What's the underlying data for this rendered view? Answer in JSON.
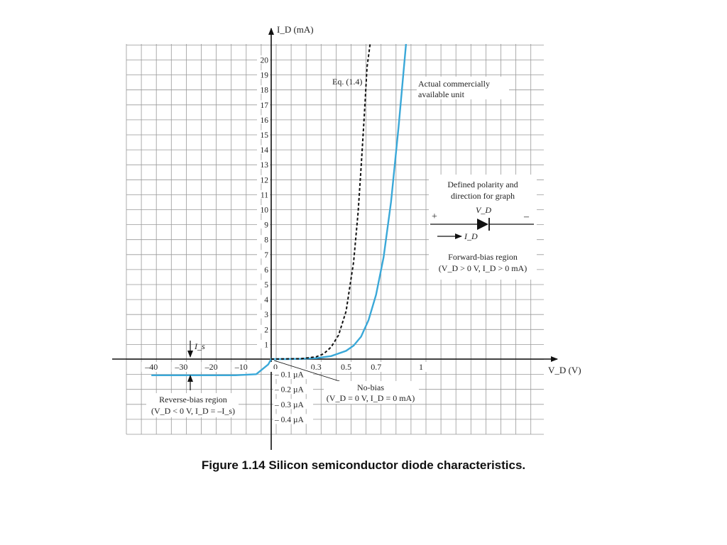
{
  "caption": "Figure 1.14 Silicon semiconductor diode characteristics.",
  "chart_data": {
    "type": "line",
    "ylabel": "I_D (mA)",
    "xlabel": "V_D (V)",
    "y_ticks": [
      "1",
      "2",
      "3",
      "4",
      "5",
      "6",
      "7",
      "8",
      "9",
      "10",
      "11",
      "12",
      "13",
      "14",
      "15",
      "16",
      "17",
      "18",
      "19",
      "20"
    ],
    "x_ticks_reverse": [
      "–40",
      "–30",
      "–20",
      "–10"
    ],
    "x_ticks_forward": [
      "0",
      "0.3",
      "0.5",
      "0.7",
      "1"
    ],
    "reverse_current_ticks": [
      "– 0.1 µA",
      "– 0.2 µA",
      "– 0.3 µA",
      "– 0.4 µA"
    ],
    "colors": {
      "actual": "#3aa8d8",
      "equation": "#111111",
      "grid": "#999999"
    },
    "series": [
      {
        "name": "Actual commercially available unit",
        "x": [
          -40,
          -25,
          -12,
          -5,
          -1,
          0,
          0.1,
          0.2,
          0.3,
          0.4,
          0.5,
          0.55,
          0.6,
          0.65,
          0.7,
          0.75,
          0.8,
          0.85,
          0.9
        ],
        "y": [
          -0.3,
          -0.3,
          -0.3,
          -0.28,
          -0.1,
          0,
          0,
          0.02,
          0.06,
          0.2,
          0.55,
          0.9,
          1.5,
          2.6,
          4.3,
          6.8,
          10.5,
          15.5,
          22
        ]
      },
      {
        "name": "Eq. (1.4)",
        "x": [
          0,
          0.2,
          0.3,
          0.35,
          0.4,
          0.45,
          0.5,
          0.55,
          0.58,
          0.6,
          0.62,
          0.64,
          0.66
        ],
        "y": [
          0,
          0.03,
          0.15,
          0.35,
          0.8,
          1.6,
          3.2,
          6.5,
          9.8,
          12.8,
          16,
          19.5,
          22.5
        ]
      }
    ],
    "annotations": {
      "eq_label": "Eq. (1.4)",
      "actual_line1": "Actual commercially",
      "actual_line2": "available unit",
      "polarity_line1": "Defined polarity and",
      "polarity_line2": "direction for graph",
      "vd_label": "V_D",
      "plus": "+",
      "minus": "–",
      "id_label": "I_D",
      "forward_line1": "Forward-bias region",
      "forward_line2": "(V_D > 0 V,  I_D > 0  mA)",
      "is_label": "I_s",
      "reverse_line1": "Reverse-bias region",
      "reverse_line2": "(V_D < 0 V, I_D = –I_s)",
      "nobias_line1": "No-bias",
      "nobias_line2": "(V_D = 0 V, I_D = 0 mA)"
    }
  }
}
